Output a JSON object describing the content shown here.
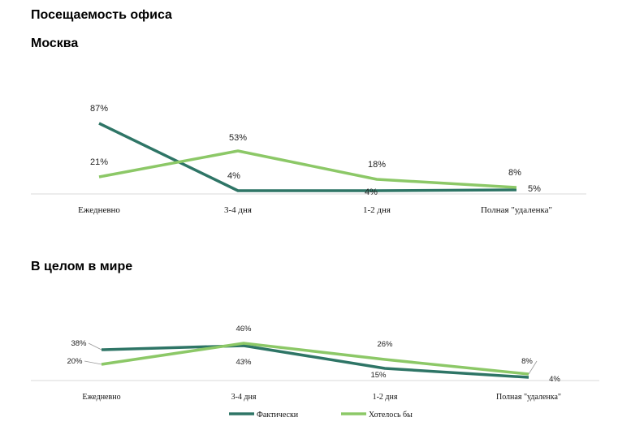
{
  "header": {
    "title": "Посещаемость офиса",
    "moscow_title": "Москва",
    "world_title": "В целом в мире"
  },
  "colors": {
    "fact": "#2e7566",
    "want": "#8cc867",
    "axis": "#d9d9d9"
  },
  "legend": {
    "fact": "Фактически",
    "want": "Хотелось бы"
  },
  "chart_data": [
    {
      "type": "line",
      "title": "Москва",
      "categories": [
        "Ежедневно",
        "3-4 дня",
        "1-2 дня",
        "Полная \"удаленка\""
      ],
      "series": [
        {
          "name": "Фактически",
          "values": [
            87,
            4,
            4,
            5
          ],
          "labels": [
            "87%",
            "4%",
            "4%",
            "5%"
          ]
        },
        {
          "name": "Хотелось бы",
          "values": [
            21,
            53,
            18,
            8
          ],
          "labels": [
            "21%",
            "53%",
            "18%",
            "8%"
          ]
        }
      ],
      "ylim": [
        0,
        100
      ],
      "grid": false,
      "legend": "bottom"
    },
    {
      "type": "line",
      "title": "В целом в мире",
      "categories": [
        "Ежедневно",
        "3-4 дня",
        "1-2 дня",
        "Полная \"удаленка\""
      ],
      "series": [
        {
          "name": "Фактически",
          "values": [
            38,
            43,
            15,
            4
          ],
          "labels": [
            "38%",
            "43%",
            "15%",
            "4%"
          ]
        },
        {
          "name": "Хотелось бы",
          "values": [
            20,
            46,
            26,
            8
          ],
          "labels": [
            "20%",
            "46%",
            "26%",
            "8%"
          ]
        }
      ],
      "ylim": [
        0,
        100
      ],
      "grid": false,
      "legend": "bottom"
    }
  ]
}
